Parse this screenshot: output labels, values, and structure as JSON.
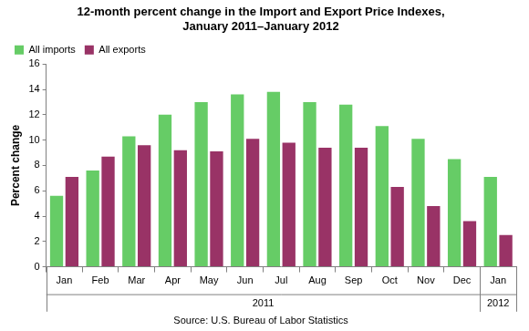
{
  "chart_data": {
    "type": "bar",
    "title": [
      "12-month percent change in the Import and Export Price Indexes,",
      "January 2011–January 2012"
    ],
    "y_label": "Percent change",
    "source": "Source: U.S. Bureau of Labor Statistics",
    "categories": [
      "Jan",
      "Feb",
      "Mar",
      "Apr",
      "May",
      "Jun",
      "Jul",
      "Aug",
      "Sep",
      "Oct",
      "Nov",
      "Dec",
      "Jan"
    ],
    "groups": [
      {
        "label": "2011",
        "start": 0,
        "end": 11
      },
      {
        "label": "2012",
        "start": 12,
        "end": 12
      }
    ],
    "series": [
      {
        "name": "All imports",
        "color": "#66cc66",
        "values": [
          5.6,
          7.6,
          10.3,
          12.0,
          13.0,
          13.6,
          13.8,
          13.0,
          12.8,
          11.1,
          10.1,
          8.5,
          7.1
        ]
      },
      {
        "name": "All exports",
        "color": "#993366",
        "values": [
          7.1,
          8.7,
          9.6,
          9.2,
          9.1,
          10.1,
          9.8,
          9.4,
          9.4,
          6.3,
          4.8,
          3.6,
          2.5
        ]
      }
    ],
    "ylim": [
      0,
      16
    ],
    "yticks": [
      0,
      2,
      4,
      6,
      8,
      10,
      12,
      14,
      16
    ],
    "grid": false,
    "legend": "top-left"
  }
}
